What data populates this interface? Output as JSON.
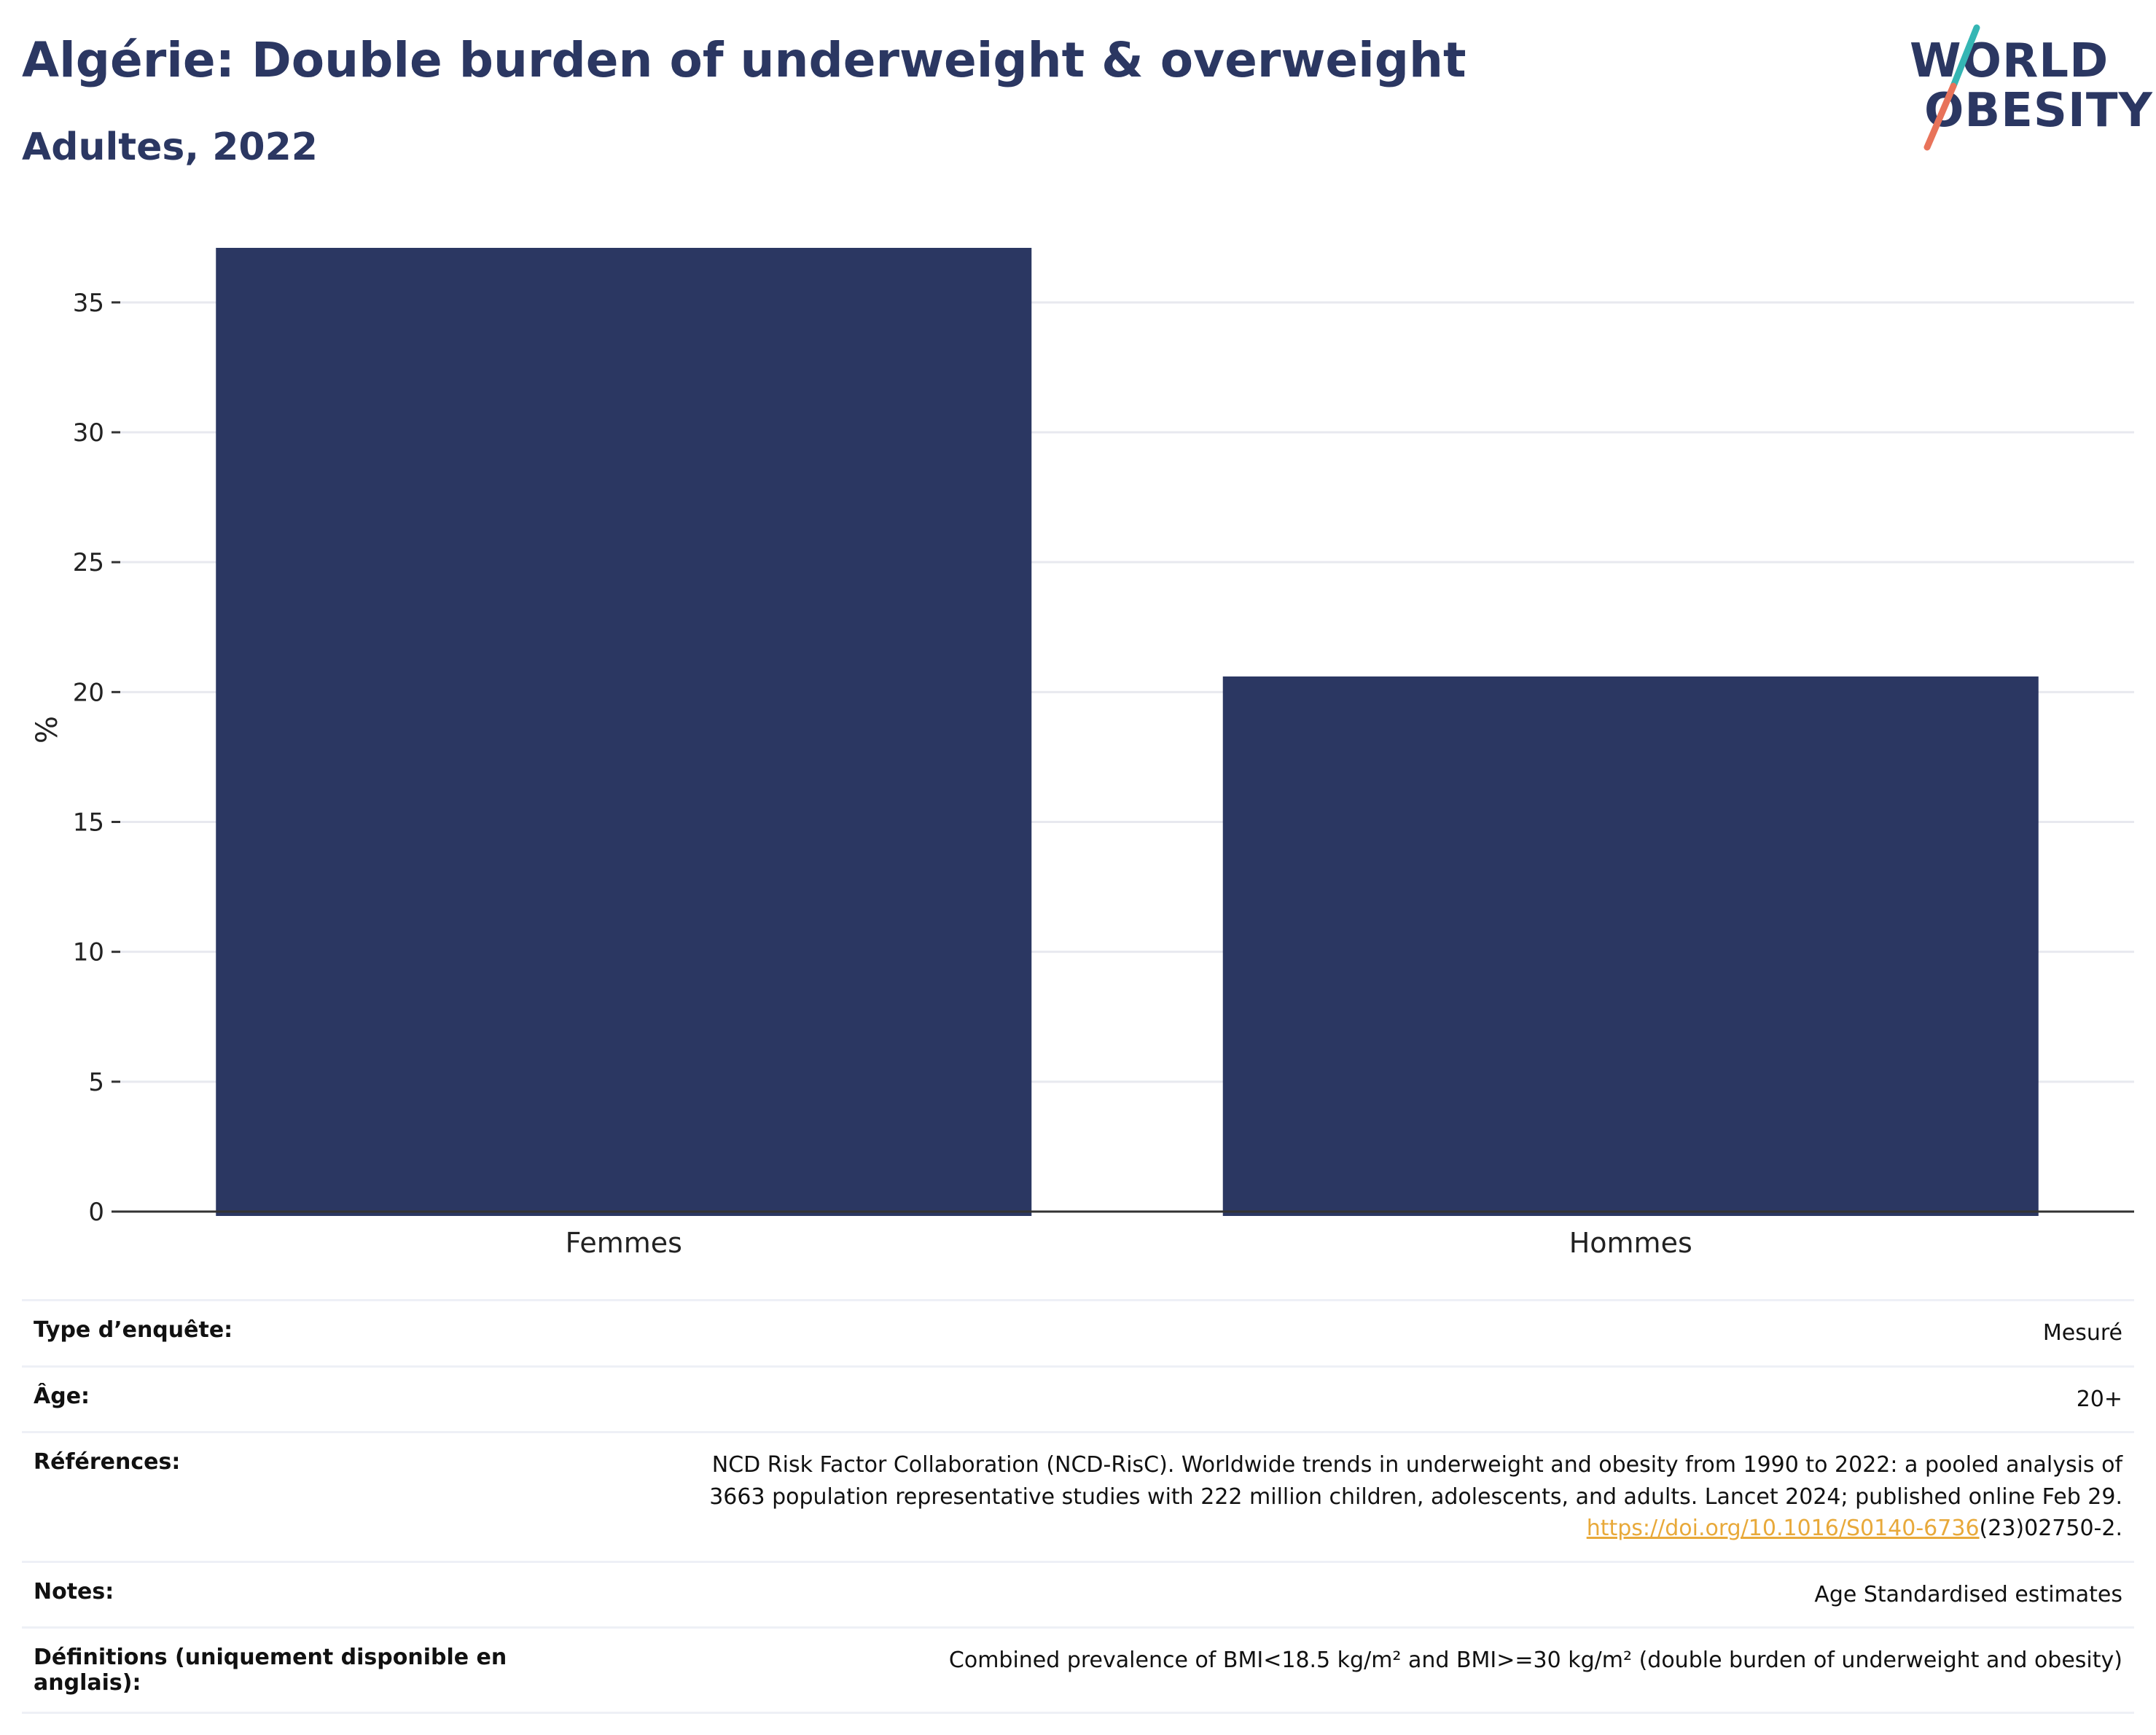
{
  "header": {
    "title": "Algérie: Double burden of underweight & overweight",
    "subtitle": "Adultes, 2022"
  },
  "logo": {
    "line1": "WORLD",
    "line2": "OBESITY",
    "colors": {
      "slash_top": "#35b6b4",
      "slash_bottom": "#e8735a"
    }
  },
  "colors": {
    "bar": "#2b3762",
    "grid": "#e8e9ef",
    "axis": "#333333"
  },
  "chart_data": {
    "type": "bar",
    "categories": [
      "Femmes",
      "Hommes"
    ],
    "values": [
      37.1,
      20.6
    ],
    "title": "Algérie: Double burden of underweight & overweight",
    "subtitle": "Adultes, 2022",
    "xlabel": "",
    "ylabel": "%",
    "ylim": [
      0,
      37.1
    ],
    "yticks": [
      0,
      5,
      10,
      15,
      20,
      25,
      30,
      35
    ],
    "grid": true,
    "legend": "none"
  },
  "meta": [
    {
      "key": "Type d’enquête:",
      "value": "Mesuré"
    },
    {
      "key": "Âge:",
      "value": "20+"
    },
    {
      "key": "Références:",
      "value_line1": "NCD Risk Factor Collaboration (NCD-RisC). Worldwide trends in underweight and obesity from 1990 to 2022: a pooled analysis of",
      "value_line2": "3663 population representative studies with 222 million children, adolescents, and adults. Lancet 2024; published online Feb 29.",
      "link": "https://doi.org/10.1016/S0140-6736",
      "link_suffix": "(23)02750-2."
    },
    {
      "key": "Notes:",
      "value": "Age Standardised estimates"
    },
    {
      "key": "Définitions (uniquement disponible en anglais):",
      "value": "Combined prevalence of BMI<18.5 kg/m² and BMI>=30 kg/m² (double burden of underweight and obesity)"
    }
  ]
}
